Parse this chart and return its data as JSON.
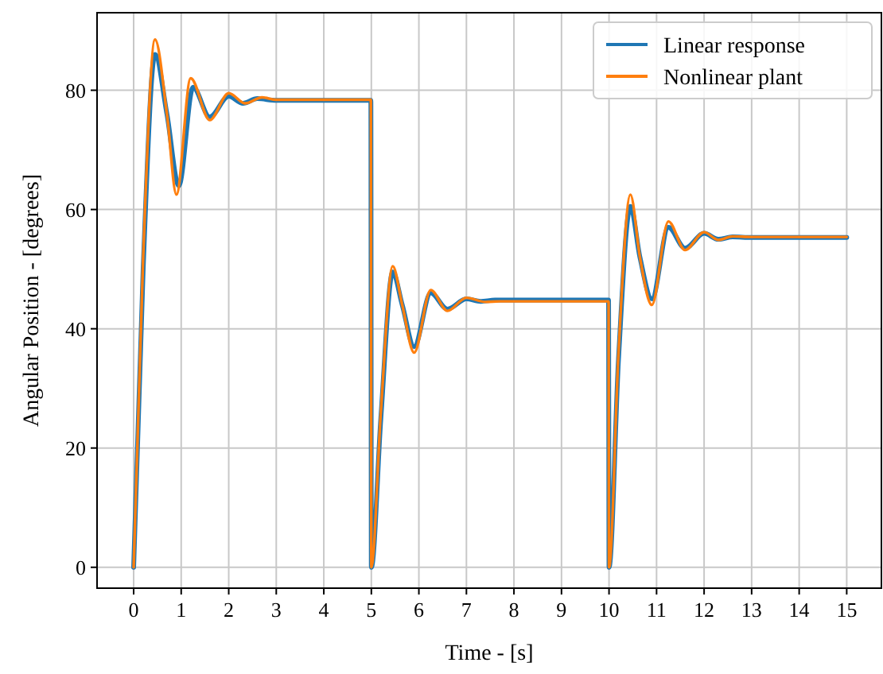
{
  "chart_data": {
    "type": "line",
    "xlabel": "Time - [s]",
    "ylabel": "Angular Position - [degrees]",
    "xlim": [
      -0.77,
      15.73
    ],
    "ylim": [
      -3.5,
      93
    ],
    "xticks": [
      0,
      1,
      2,
      3,
      4,
      5,
      6,
      7,
      8,
      9,
      10,
      11,
      12,
      13,
      14,
      15
    ],
    "yticks": [
      0,
      20,
      40,
      60,
      80
    ],
    "grid": true,
    "legend": "top right",
    "line_style": "solid",
    "marker": "none",
    "series": [
      {
        "name": "Linear response",
        "color": "#1f77b4",
        "x": [
          0,
          0.2,
          0.45,
          0.7,
          0.95,
          1.25,
          1.6,
          2.0,
          2.3,
          2.6,
          3,
          4,
          4.99,
          5,
          5.2,
          5.45,
          5.65,
          5.9,
          6.25,
          6.6,
          7.0,
          7.3,
          7.6,
          8,
          9,
          9.99,
          10,
          10.2,
          10.45,
          10.65,
          10.9,
          11.25,
          11.6,
          12.0,
          12.3,
          12.6,
          13,
          14,
          15
        ],
        "values": [
          0,
          50,
          86,
          76,
          64,
          80.5,
          75.5,
          79,
          77.8,
          78.6,
          78.3,
          78.3,
          78.3,
          0,
          25,
          49.5,
          44,
          37,
          46,
          43.3,
          45,
          44.6,
          44.8,
          44.8,
          44.8,
          44.8,
          0,
          35,
          60.5,
          52,
          45,
          57,
          53.5,
          56,
          55,
          55.4,
          55.3,
          55.3,
          55.3
        ]
      },
      {
        "name": "Nonlinear plant",
        "color": "#ff7f0e",
        "x": [
          0,
          0.2,
          0.45,
          0.7,
          0.9,
          1.2,
          1.6,
          2.0,
          2.35,
          2.7,
          3,
          4,
          4.99,
          5,
          5.2,
          5.45,
          5.65,
          5.9,
          6.25,
          6.6,
          7.0,
          7.4,
          7.7,
          8,
          9,
          9.99,
          10,
          10.2,
          10.45,
          10.65,
          10.9,
          11.25,
          11.6,
          12.0,
          12.3,
          12.6,
          13,
          14,
          15
        ],
        "values": [
          0,
          52,
          88.5,
          76,
          62.5,
          82,
          75,
          79.5,
          77.8,
          78.8,
          78.4,
          78.4,
          78.4,
          0,
          26,
          50.5,
          44,
          36,
          46.5,
          43,
          45.2,
          44.5,
          44.6,
          44.6,
          44.6,
          44.6,
          0,
          36,
          62.5,
          52,
          44,
          58,
          53.2,
          56.2,
          54.9,
          55.5,
          55.4,
          55.4,
          55.4
        ]
      }
    ]
  }
}
